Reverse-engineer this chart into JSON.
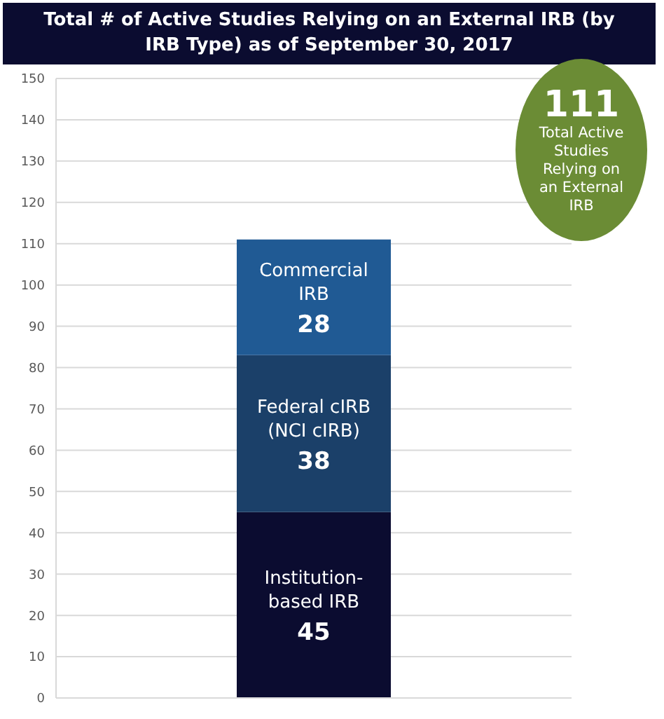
{
  "chart_data": {
    "type": "bar",
    "title": "Total # of Active Studies Relying on an External IRB (by IRB Type) as of September 30, 2017",
    "stacked": true,
    "categories": [
      null
    ],
    "series": [
      {
        "name": "Institution-based IRB",
        "color": "#0b0c30",
        "values": [
          45
        ]
      },
      {
        "name": "Federal cIRB (NCI cIRB)",
        "color": "#1b4069",
        "values": [
          38
        ]
      },
      {
        "name": "Commercial IRB",
        "color": "#205a94",
        "values": [
          28
        ]
      }
    ],
    "data_labels": true,
    "annotations": [
      "111",
      "Total Active Studies Relying on an External IRB"
    ],
    "ylim": [
      0,
      150
    ],
    "yticks": [
      0,
      10,
      20,
      30,
      40,
      50,
      60,
      70,
      80,
      90,
      100,
      110,
      120,
      130,
      140,
      150
    ],
    "grid": "y",
    "legend": false
  }
}
